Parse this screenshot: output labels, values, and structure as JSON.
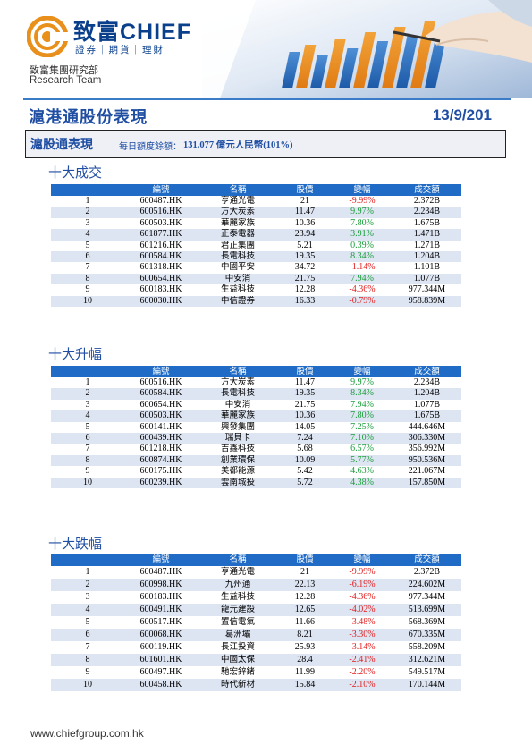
{
  "brand": {
    "name": "致富CHIEF",
    "tagline": "證券｜期貨｜理財",
    "dept_cn": "致富集團研究部",
    "dept_en": "Research Team",
    "colors": {
      "primary": "#0a3f8c",
      "accent": "#1f6bc5",
      "up": "#1a9e3a",
      "down": "#e21d1d",
      "logo_orange": "#e8901b"
    }
  },
  "page": {
    "title": "滬港通股份表現",
    "date": "13/9/201"
  },
  "summary": {
    "label": "滬股通表現",
    "prefix": "每日額度餘額：",
    "value": "131.077 億元人民幣(101%)"
  },
  "columns": [
    "",
    "編號",
    "名稱",
    "股價",
    "變幅",
    "成交額"
  ],
  "tables": [
    {
      "title": "十大成交",
      "rows": [
        [
          "1",
          "600487.HK",
          "亨通光電",
          "21",
          "-9.99%",
          "2.372B"
        ],
        [
          "2",
          "600516.HK",
          "方大炭素",
          "11.47",
          "9.97%",
          "2.234B"
        ],
        [
          "3",
          "600503.HK",
          "華麗家族",
          "10.36",
          "7.80%",
          "1.675B"
        ],
        [
          "4",
          "601877.HK",
          "正泰電器",
          "23.94",
          "3.91%",
          "1.471B"
        ],
        [
          "5",
          "601216.HK",
          "君正集團",
          "5.21",
          "0.39%",
          "1.271B"
        ],
        [
          "6",
          "600584.HK",
          "長電科技",
          "19.35",
          "8.34%",
          "1.204B"
        ],
        [
          "7",
          "601318.HK",
          "中國平安",
          "34.72",
          "-1.14%",
          "1.101B"
        ],
        [
          "8",
          "600654.HK",
          "中安消",
          "21.75",
          "7.94%",
          "1.077B"
        ],
        [
          "9",
          "600183.HK",
          "生益科技",
          "12.28",
          "-4.36%",
          "977.344M"
        ],
        [
          "10",
          "600030.HK",
          "中信證券",
          "16.33",
          "-0.79%",
          "958.839M"
        ]
      ]
    },
    {
      "title": "十大升幅",
      "rows": [
        [
          "1",
          "600516.HK",
          "方大炭素",
          "11.47",
          "9.97%",
          "2.234B"
        ],
        [
          "2",
          "600584.HK",
          "長電科技",
          "19.35",
          "8.34%",
          "1.204B"
        ],
        [
          "3",
          "600654.HK",
          "中安消",
          "21.75",
          "7.94%",
          "1.077B"
        ],
        [
          "4",
          "600503.HK",
          "華麗家族",
          "10.36",
          "7.80%",
          "1.675B"
        ],
        [
          "5",
          "600141.HK",
          "興發集團",
          "14.05",
          "7.25%",
          "444.646M"
        ],
        [
          "6",
          "600439.HK",
          "瑞貝卡",
          "7.24",
          "7.10%",
          "306.330M"
        ],
        [
          "7",
          "601218.HK",
          "吉鑫科技",
          "5.68",
          "6.57%",
          "356.992M"
        ],
        [
          "8",
          "600874.HK",
          "創業環保",
          "10.09",
          "5.77%",
          "950.536M"
        ],
        [
          "9",
          "600175.HK",
          "美都能源",
          "5.42",
          "4.63%",
          "221.067M"
        ],
        [
          "10",
          "600239.HK",
          "雲南城投",
          "5.72",
          "4.38%",
          "157.850M"
        ]
      ]
    },
    {
      "title": "十大跌幅",
      "rows": [
        [
          "1",
          "600487.HK",
          "亨通光電",
          "21",
          "-9.99%",
          "2.372B"
        ],
        [
          "2",
          "600998.HK",
          "九州通",
          "22.13",
          "-6.19%",
          "224.602M"
        ],
        [
          "3",
          "600183.HK",
          "生益科技",
          "12.28",
          "-4.36%",
          "977.344M"
        ],
        [
          "4",
          "600491.HK",
          "龍元建設",
          "12.65",
          "-4.02%",
          "513.699M"
        ],
        [
          "5",
          "600517.HK",
          "置信電氣",
          "11.66",
          "-3.48%",
          "568.369M"
        ],
        [
          "6",
          "600068.HK",
          "葛洲壩",
          "8.21",
          "-3.30%",
          "670.335M"
        ],
        [
          "7",
          "600119.HK",
          "長江投資",
          "25.93",
          "-3.14%",
          "558.209M"
        ],
        [
          "8",
          "601601.HK",
          "中國太保",
          "28.4",
          "-2.41%",
          "312.621M"
        ],
        [
          "9",
          "600497.HK",
          "馳宏鋅鍺",
          "11.99",
          "-2.20%",
          "549.517M"
        ],
        [
          "10",
          "600458.HK",
          "時代新材",
          "15.84",
          "-2.10%",
          "170.144M"
        ]
      ]
    }
  ],
  "footer": {
    "url": "www.chiefgroup.com.hk"
  }
}
